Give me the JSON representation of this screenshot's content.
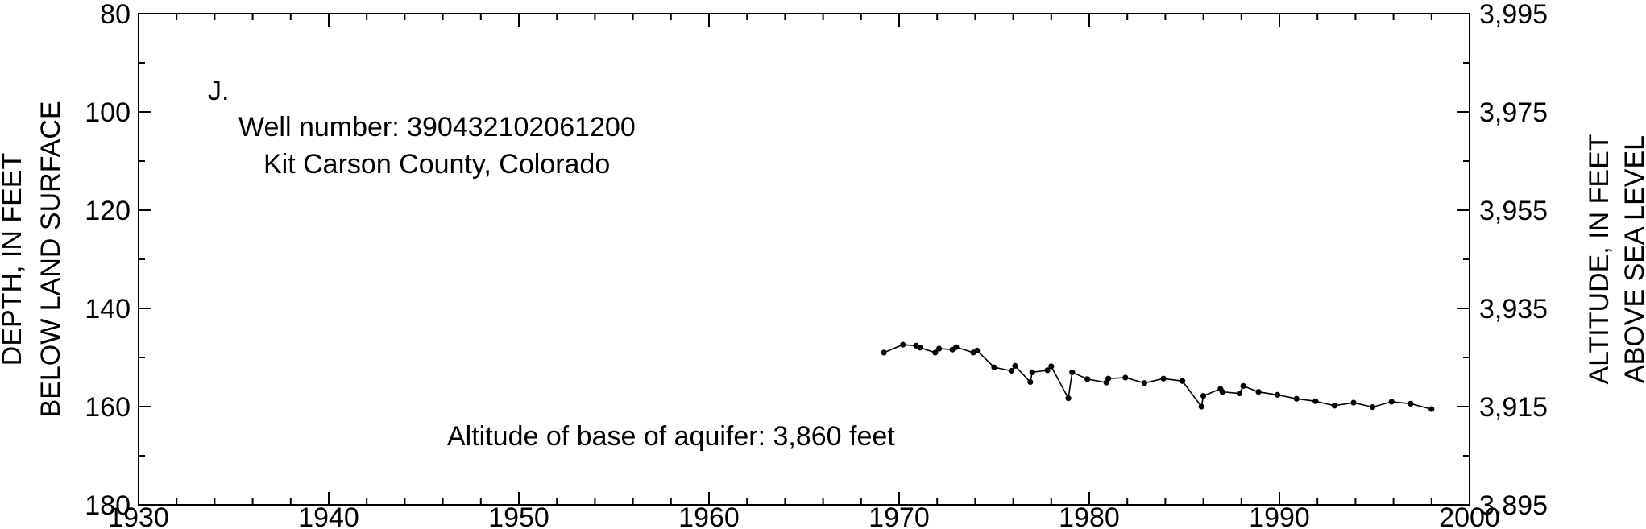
{
  "chart_data": {
    "type": "line",
    "panel_label": "J.",
    "annotations": {
      "well_number": "Well number: 390432102061200",
      "county": "Kit Carson County, Colorado",
      "base_altitude": "Altitude of base of aquifer: 3,860 feet"
    },
    "left_axis": {
      "title_line1": "DEPTH, IN FEET",
      "title_line2": "BELOW LAND SURFACE",
      "range": [
        80,
        180
      ],
      "inverted": true,
      "ticks": [
        "80",
        "100",
        "120",
        "140",
        "160",
        "180"
      ],
      "tick_values": [
        80,
        100,
        120,
        140,
        160,
        180
      ]
    },
    "right_axis": {
      "title_line1": "ALTITUDE, IN FEET",
      "title_line2": "ABOVE SEA LEVEL",
      "range": [
        3995,
        3895
      ],
      "ticks": [
        "3,995",
        "3,975",
        "3,955",
        "3,935",
        "3,915",
        "3,895"
      ],
      "tick_values": [
        3995,
        3975,
        3955,
        3935,
        3915,
        3895
      ]
    },
    "x_axis": {
      "range": [
        1930,
        2000
      ],
      "ticks": [
        "1930",
        "1940",
        "1950",
        "1960",
        "1970",
        "1980",
        "1990",
        "2000"
      ],
      "tick_values": [
        1930,
        1940,
        1950,
        1960,
        1970,
        1980,
        1990,
        2000
      ]
    },
    "grid": false,
    "series": [
      {
        "x": [
          1969.2,
          1970.2,
          1970.9,
          1971.1,
          1971.9,
          1972.1,
          1972.8,
          1973.0,
          1973.9,
          1974.1,
          1975.0,
          1975.9,
          1976.1,
          1976.9,
          1977.0,
          1977.8,
          1978.0,
          1978.9,
          1979.1,
          1979.9,
          1980.9,
          1981.0,
          1981.9,
          1982.9,
          1983.9,
          1984.9,
          1985.9,
          1986.0,
          1986.9,
          1987.0,
          1987.9,
          1988.1,
          1988.9,
          1989.9,
          1990.9,
          1991.9,
          1992.9,
          1993.9,
          1994.9,
          1995.9,
          1996.9,
          1998.0
        ],
        "y": [
          149.0,
          147.4,
          147.6,
          148.0,
          149.0,
          148.2,
          148.4,
          147.9,
          149.0,
          148.6,
          152.0,
          152.7,
          151.7,
          155.0,
          153.0,
          152.6,
          151.8,
          158.3,
          153.0,
          154.4,
          155.1,
          154.3,
          154.1,
          155.2,
          154.3,
          154.8,
          160.0,
          157.8,
          156.4,
          157.0,
          157.3,
          155.8,
          157.0,
          157.6,
          158.4,
          158.9,
          159.8,
          159.2,
          160.1,
          159.0,
          159.4,
          160.5
        ]
      }
    ]
  }
}
